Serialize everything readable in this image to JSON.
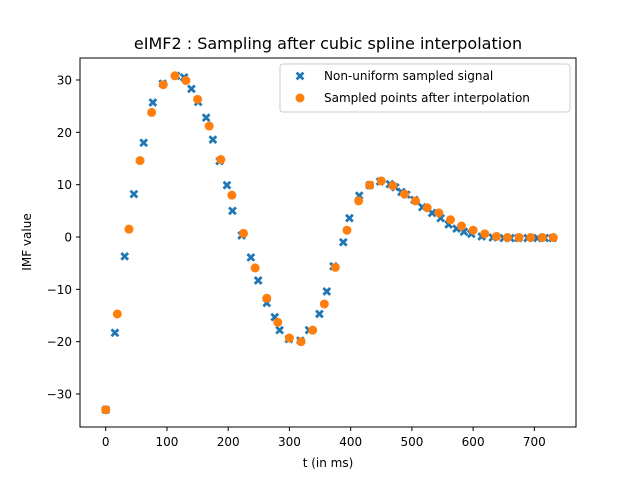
{
  "chart_data": {
    "type": "scatter",
    "title": "eIMF2 : Sampling after cubic spline interpolation",
    "xlabel": "t (in ms)",
    "ylabel": "IMF value",
    "xlim": [
      -42,
      768
    ],
    "ylim": [
      -36.3,
      34.2
    ],
    "xticks": [
      0,
      100,
      200,
      300,
      400,
      500,
      600,
      700
    ],
    "yticks": [
      -30,
      -20,
      -10,
      0,
      10,
      20,
      30
    ],
    "xtick_labels": [
      "0",
      "100",
      "200",
      "300",
      "400",
      "500",
      "600",
      "700"
    ],
    "ytick_labels": [
      "−30",
      "−20",
      "−10",
      "0",
      "10",
      "20",
      "30"
    ],
    "grid": false,
    "legend_position": "upper right",
    "series": [
      {
        "name": "Non-uniform sampled signal",
        "marker": "x",
        "color": "#1f77b4",
        "x": [
          0,
          15,
          31,
          46,
          62,
          77,
          93,
          115,
          128,
          140,
          151,
          164,
          175,
          186,
          198,
          207,
          222,
          237,
          249,
          263,
          276,
          284,
          299,
          318,
          332,
          349,
          361,
          372,
          388,
          398,
          414,
          431,
          448,
          464,
          473,
          483,
          491,
          504,
          517,
          533,
          547,
          560,
          573,
          585,
          597,
          614,
          632,
          650,
          661,
          674,
          689,
          705,
          717,
          730
        ],
        "y": [
          -33,
          -18.3,
          -3.7,
          8.2,
          18,
          25.7,
          29.3,
          30.8,
          30.5,
          28.3,
          25.8,
          22.8,
          18.6,
          14.5,
          9.9,
          5,
          0.3,
          -3.9,
          -8.3,
          -12.6,
          -15.3,
          -17.8,
          -19.5,
          -19.8,
          -17.8,
          -14.7,
          -10.4,
          -5.6,
          -1,
          3.6,
          7.9,
          9.9,
          10.6,
          10.1,
          9.5,
          8.6,
          8.1,
          7.1,
          5.7,
          4.6,
          3.6,
          2.4,
          1.6,
          1,
          0.6,
          0.1,
          -0.1,
          -0.2,
          -0.2,
          -0.2,
          -0.2,
          -0.2,
          -0.2,
          -0.2
        ]
      },
      {
        "name": "Sampled points after interpolation",
        "marker": "o",
        "color": "#ff7f0e",
        "x": [
          0,
          19,
          38,
          56,
          75,
          94,
          113,
          131,
          150,
          169,
          188,
          206,
          225,
          244,
          263,
          281,
          300,
          319,
          338,
          357,
          375,
          394,
          413,
          431,
          450,
          469,
          488,
          506,
          525,
          544,
          563,
          581,
          600,
          619,
          638,
          656,
          675,
          694,
          713,
          731
        ],
        "y": [
          -33,
          -14.7,
          1.5,
          14.6,
          23.8,
          29.1,
          30.8,
          29.9,
          26.3,
          21.2,
          14.8,
          8,
          0.7,
          -5.9,
          -11.7,
          -16.3,
          -19.3,
          -20,
          -17.8,
          -12.8,
          -5.8,
          1.3,
          6.9,
          9.9,
          10.7,
          9.8,
          8.2,
          6.9,
          5.6,
          4.6,
          3.3,
          2.1,
          1.3,
          0.6,
          0.1,
          -0.1,
          -0.1,
          -0.1,
          -0.1,
          -0.1
        ]
      }
    ]
  }
}
